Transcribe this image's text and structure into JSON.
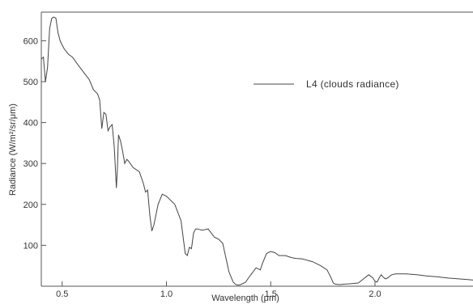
{
  "chart_data": {
    "type": "line",
    "xlabel": "Wavelength (μm)",
    "ylabel": "Radiance (W/m²/sr/μm)",
    "xlim": [
      0.4,
      2.47
    ],
    "ylim": [
      0,
      670
    ],
    "x_ticks": [
      0.5,
      1.0,
      1.5,
      2.0
    ],
    "x_tick_labels": [
      "0.5",
      "1.0",
      "1.5",
      "2.0"
    ],
    "y_ticks": [
      100,
      200,
      300,
      400,
      500,
      600
    ],
    "y_tick_labels": [
      "100",
      "200",
      "300",
      "400",
      "500",
      "600"
    ],
    "grid": false,
    "legend_position": "top-right",
    "colors": {
      "line": "#444444",
      "axis": "#555555"
    },
    "series": [
      {
        "name": "L4 (clouds radiance)",
        "x": [
          0.4,
          0.41,
          0.42,
          0.43,
          0.44,
          0.45,
          0.46,
          0.47,
          0.48,
          0.49,
          0.5,
          0.51,
          0.53,
          0.55,
          0.57,
          0.6,
          0.63,
          0.65,
          0.67,
          0.68,
          0.69,
          0.7,
          0.71,
          0.72,
          0.73,
          0.74,
          0.75,
          0.755,
          0.76,
          0.765,
          0.77,
          0.78,
          0.79,
          0.8,
          0.81,
          0.82,
          0.84,
          0.87,
          0.89,
          0.9,
          0.91,
          0.92,
          0.93,
          0.94,
          0.95,
          0.96,
          0.98,
          1.0,
          1.04,
          1.07,
          1.09,
          1.1,
          1.11,
          1.12,
          1.13,
          1.14,
          1.15,
          1.17,
          1.2,
          1.23,
          1.25,
          1.27,
          1.3,
          1.32,
          1.33,
          1.34,
          1.35,
          1.36,
          1.38,
          1.4,
          1.43,
          1.45,
          1.46,
          1.48,
          1.5,
          1.52,
          1.54,
          1.57,
          1.6,
          1.62,
          1.65,
          1.7,
          1.74,
          1.77,
          1.79,
          1.8,
          1.81,
          1.83,
          1.85,
          1.88,
          1.92,
          1.95,
          1.97,
          1.99,
          2.0,
          2.01,
          2.02,
          2.03,
          2.04,
          2.05,
          2.06,
          2.07,
          2.08,
          2.1,
          2.15,
          2.2,
          2.25,
          2.3,
          2.35,
          2.4,
          2.45,
          2.47
        ],
        "y": [
          555,
          560,
          500,
          535,
          630,
          655,
          658,
          655,
          620,
          600,
          590,
          580,
          567,
          560,
          545,
          525,
          505,
          480,
          470,
          455,
          385,
          425,
          420,
          380,
          390,
          395,
          340,
          290,
          240,
          290,
          370,
          355,
          330,
          300,
          310,
          305,
          290,
          280,
          250,
          230,
          235,
          175,
          135,
          150,
          175,
          200,
          225,
          220,
          200,
          160,
          80,
          75,
          95,
          92,
          130,
          140,
          140,
          137,
          140,
          120,
          115,
          105,
          35,
          10,
          5,
          3,
          3,
          5,
          10,
          25,
          45,
          40,
          55,
          80,
          85,
          82,
          75,
          75,
          70,
          68,
          67,
          60,
          50,
          40,
          20,
          8,
          5,
          4,
          5,
          6,
          8,
          20,
          28,
          20,
          12,
          10,
          20,
          28,
          22,
          18,
          20,
          24,
          28,
          30,
          30,
          28,
          25,
          23,
          20,
          18,
          16,
          15
        ]
      }
    ]
  }
}
